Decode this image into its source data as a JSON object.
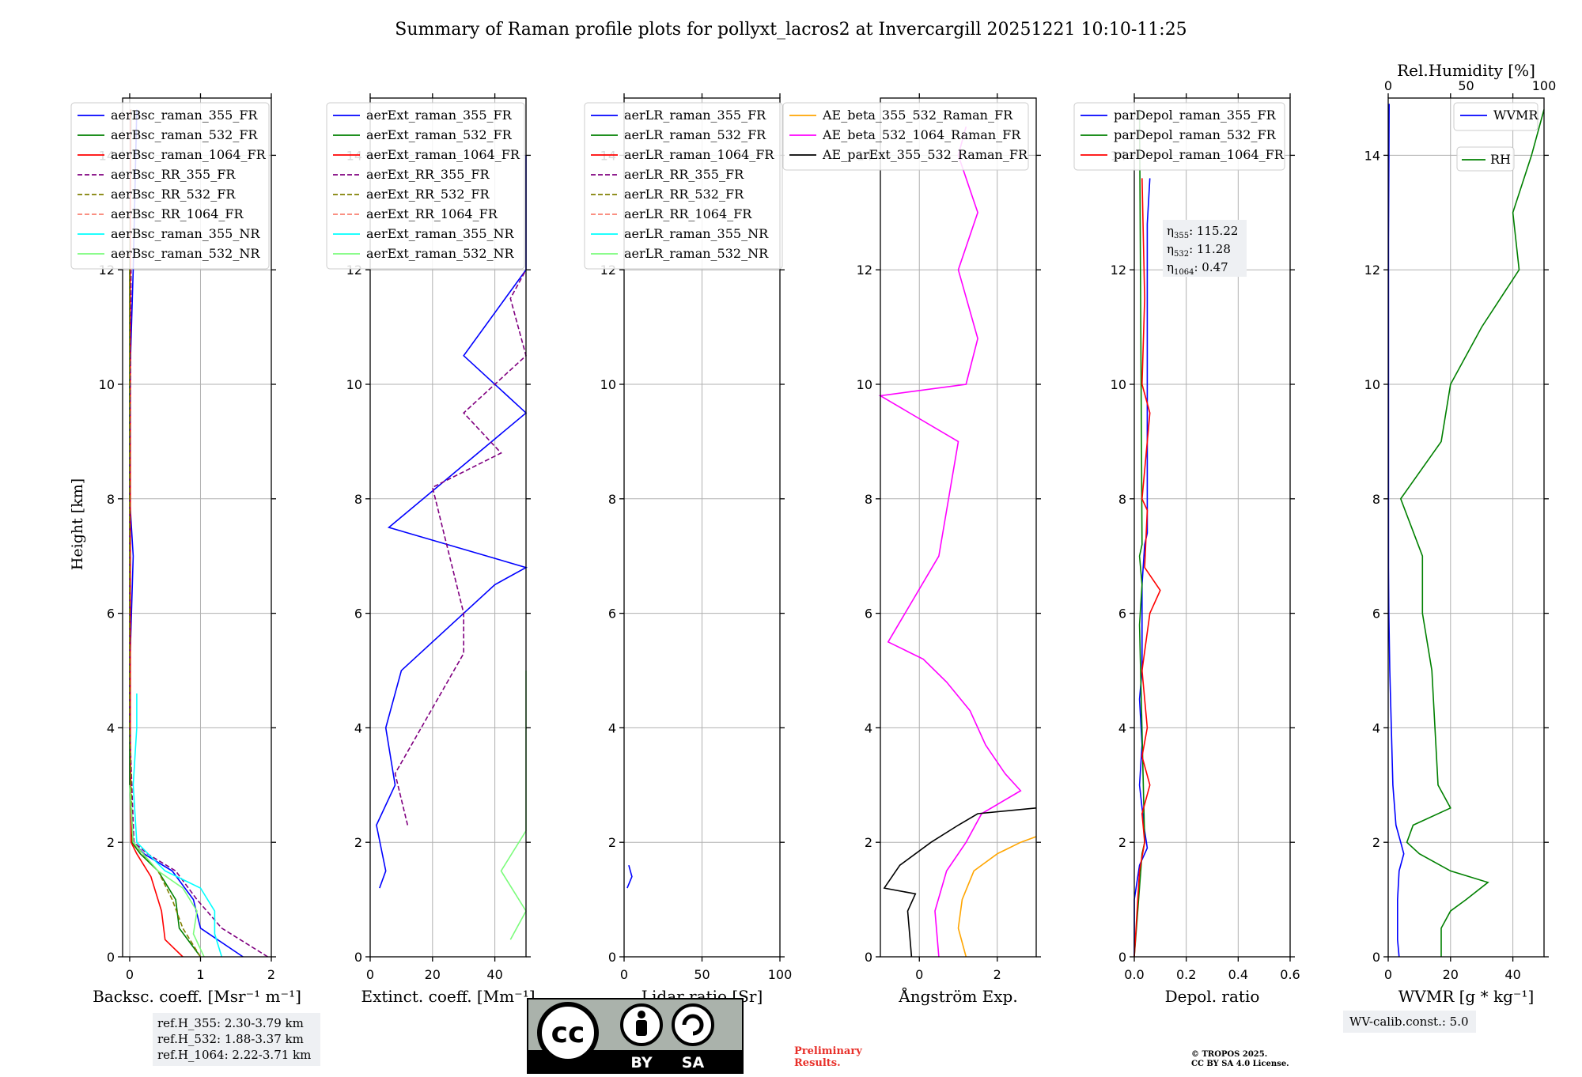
{
  "title": "Summary of Raman profile plots for pollyxt_lacros2 at Invercargill 20251221 10:10-11:25",
  "ylabel": "Height [km]",
  "colors": {
    "blue": "#0000ff",
    "green": "#008000",
    "red": "#ff0000",
    "purple": "#800080",
    "olive": "#808000",
    "salmon": "#fa8072",
    "cyan": "#00ffff",
    "lightgreen": "#7cfc7c",
    "orange": "#ffa500",
    "magenta": "#ff00ff",
    "black": "#000000"
  },
  "chart_data": [
    {
      "type": "line",
      "xlabel": "Backsc. coeff. [Msr⁻¹ m⁻¹]",
      "xlim": [
        -0.1,
        2
      ],
      "ylim": [
        0,
        15
      ],
      "xticks": [
        "0",
        "1",
        "2"
      ],
      "xtick_values": [
        0,
        1,
        2
      ],
      "legend": [
        "aerBsc_raman_355_FR",
        "aerBsc_raman_532_FR",
        "aerBsc_raman_1064_FR",
        "aerBsc_RR_355_FR",
        "aerBsc_RR_532_FR",
        "aerBsc_RR_1064_FR",
        "aerBsc_raman_355_NR",
        "aerBsc_raman_532_NR"
      ],
      "series": [
        {
          "name": "aerBsc_raman_355_FR",
          "color": "blue",
          "y": [
            0,
            0.5,
            1,
            1.5,
            1.8,
            2,
            3,
            5,
            7,
            8,
            10,
            12,
            14.8
          ],
          "x": [
            1.6,
            1.0,
            0.9,
            0.6,
            0.2,
            0.05,
            0.0,
            0.0,
            0.05,
            0.0,
            0.0,
            0.05,
            0.1
          ]
        },
        {
          "name": "aerBsc_raman_532_FR",
          "color": "green",
          "y": [
            0,
            0.5,
            1,
            1.5,
            1.8,
            2,
            3,
            5,
            8,
            12,
            14.8
          ],
          "x": [
            1.0,
            0.7,
            0.65,
            0.4,
            0.15,
            0.03,
            0.0,
            0.0,
            0.0,
            0.0,
            0.02
          ]
        },
        {
          "name": "aerBsc_raman_1064_FR",
          "color": "red",
          "y": [
            0,
            0.3,
            0.8,
            1.4,
            1.8,
            2,
            4,
            8,
            12,
            14.8
          ],
          "x": [
            0.75,
            0.5,
            0.45,
            0.3,
            0.1,
            0.02,
            0.01,
            0.01,
            0.01,
            0.01
          ]
        },
        {
          "name": "aerBsc_RR_355_FR",
          "color": "purple",
          "y": [
            0,
            0.5,
            1,
            1.5,
            1.8,
            2,
            4,
            8,
            12
          ],
          "x": [
            1.95,
            1.3,
            0.95,
            0.65,
            0.25,
            0.06,
            0.0,
            0.0,
            0.02
          ]
        },
        {
          "name": "aerBsc_RR_532_FR",
          "color": "olive",
          "y": [
            0,
            0.5,
            1,
            1.5,
            2,
            4,
            8,
            12
          ],
          "x": [
            1.0,
            0.75,
            0.6,
            0.4,
            0.04,
            0.0,
            0.0,
            0.0
          ]
        },
        {
          "name": "aerBsc_raman_355_NR",
          "color": "cyan",
          "y": [
            0,
            0.4,
            0.8,
            1.2,
            1.5,
            2,
            3,
            4,
            4.6
          ],
          "x": [
            1.3,
            1.2,
            1.2,
            1.0,
            0.5,
            0.1,
            0.05,
            0.1,
            0.1
          ]
        },
        {
          "name": "aerBsc_raman_532_NR",
          "color": "lightgreen",
          "y": [
            0,
            0.4,
            0.8,
            1.2,
            1.5,
            2,
            3
          ],
          "x": [
            1.05,
            0.9,
            0.95,
            0.75,
            0.4,
            0.05,
            0.0
          ]
        }
      ]
    },
    {
      "type": "line",
      "xlabel": "Extinct. coeff. [Mm⁻¹]",
      "xlim": [
        0,
        50
      ],
      "ylim": [
        0,
        15
      ],
      "xticks": [
        "0",
        "20",
        "40"
      ],
      "xtick_values": [
        0,
        20,
        40
      ],
      "legend": [
        "aerExt_raman_355_FR",
        "aerExt_raman_532_FR",
        "aerExt_raman_1064_FR",
        "aerExt_RR_355_FR",
        "aerExt_RR_532_FR",
        "aerExt_RR_1064_FR",
        "aerExt_raman_355_NR",
        "aerExt_raman_532_NR"
      ],
      "series": [
        {
          "name": "aerExt_raman_355_FR",
          "color": "blue",
          "y": [
            1.2,
            1.5,
            2.3,
            3,
            4,
            5,
            6.5,
            6.8,
            7.5,
            9.5,
            10.5,
            12,
            14
          ],
          "x": [
            3,
            5,
            2,
            8,
            5,
            10,
            40,
            50,
            6,
            50,
            30,
            50,
            50
          ]
        },
        {
          "name": "aerExt_RR_355_FR",
          "color": "purple",
          "y": [
            2.3,
            3.2,
            5.3,
            6,
            8.2,
            8.8,
            9.5,
            10.5,
            11.5,
            12
          ],
          "x": [
            12,
            8,
            30,
            30,
            20,
            42,
            30,
            50,
            45,
            50
          ]
        },
        {
          "name": "aerExt_raman_532_NR",
          "color": "lightgreen",
          "y": [
            0.3,
            0.8,
            1.5,
            2.2,
            3,
            4,
            5
          ],
          "x": [
            45,
            50,
            42,
            50,
            50,
            50,
            50
          ]
        }
      ]
    },
    {
      "type": "line",
      "xlabel": "Lidar ratio [Sr]",
      "xlim": [
        0,
        100
      ],
      "ylim": [
        0,
        15
      ],
      "xticks": [
        "0",
        "50",
        "100"
      ],
      "xtick_values": [
        0,
        50,
        100
      ],
      "legend": [
        "aerLR_raman_355_FR",
        "aerLR_raman_532_FR",
        "aerLR_raman_1064_FR",
        "aerLR_RR_355_FR",
        "aerLR_RR_532_FR",
        "aerLR_RR_1064_FR",
        "aerLR_raman_355_NR",
        "aerLR_raman_532_NR"
      ],
      "series": [
        {
          "name": "aerLR_raman_355_FR",
          "color": "blue",
          "y": [
            1.2,
            1.4,
            1.6
          ],
          "x": [
            2,
            5,
            3
          ]
        }
      ]
    },
    {
      "type": "line",
      "xlabel": "Ångström Exp.",
      "xlim": [
        -1,
        3
      ],
      "ylim": [
        0,
        15
      ],
      "xticks": [
        "0",
        "2"
      ],
      "xtick_values": [
        0,
        2
      ],
      "legend": [
        "AE_beta_355_532_Raman_FR",
        "AE_beta_532_1064_Raman_FR",
        "AE_parExt_355_532_Raman_FR"
      ],
      "series": [
        {
          "name": "AE_beta_355_532_Raman_FR",
          "color": "orange",
          "y": [
            0,
            0.5,
            1,
            1.5,
            1.8,
            2,
            2.1
          ],
          "x": [
            1.2,
            1.0,
            1.1,
            1.4,
            2.0,
            2.6,
            3.0
          ]
        },
        {
          "name": "AE_beta_532_1064_Raman_FR",
          "color": "magenta",
          "y": [
            0,
            0.8,
            1.5,
            2,
            2.5,
            2.9,
            3.2,
            3.7,
            4.3,
            4.8,
            5.2,
            5.5,
            7,
            9,
            9.8,
            10,
            10.8,
            12,
            13,
            14,
            14.5
          ],
          "x": [
            0.5,
            0.4,
            0.7,
            1.2,
            1.6,
            2.6,
            2.2,
            1.7,
            1.3,
            0.7,
            0.1,
            -0.8,
            0.5,
            1.0,
            -1.0,
            1.2,
            1.5,
            1.0,
            1.5,
            1.0,
            1.2
          ]
        },
        {
          "name": "AE_parExt_355_532_Raman_FR",
          "color": "black",
          "y": [
            0,
            0.8,
            1.1,
            1.2,
            1.6,
            2.0,
            2.3,
            2.5,
            2.6
          ],
          "x": [
            -0.2,
            -0.3,
            -0.1,
            -0.9,
            -0.5,
            0.3,
            1.0,
            1.5,
            3.0
          ]
        }
      ]
    },
    {
      "type": "line",
      "xlabel": "Depol. ratio",
      "xlim": [
        0.0,
        0.6
      ],
      "ylim": [
        0,
        15
      ],
      "xticks": [
        "0.0",
        "0.2",
        "0.4",
        "0.6"
      ],
      "xtick_values": [
        0,
        0.2,
        0.4,
        0.6
      ],
      "legend": [
        "parDepol_raman_355_FR",
        "parDepol_raman_532_FR",
        "parDepol_raman_1064_FR"
      ],
      "annotation": [
        {
          "sym": "η",
          "sub": "355",
          "val": ": 115.22"
        },
        {
          "sym": "η",
          "sub": "532",
          "val": ": 11.28"
        },
        {
          "sym": "η",
          "sub": "1064",
          "val": ": 0.47"
        }
      ],
      "series": [
        {
          "name": "parDepol_raman_355_FR",
          "color": "blue",
          "y": [
            0,
            1,
            1.6,
            1.9,
            2.2,
            3,
            3.7,
            4.5,
            5,
            6,
            6.5,
            7.2,
            7.4,
            10.2,
            11.3,
            12.8,
            13.6
          ],
          "x": [
            0.0,
            0.0,
            0.02,
            0.05,
            0.04,
            0.02,
            0.03,
            0.02,
            0.03,
            0.03,
            0.03,
            0.04,
            0.05,
            0.05,
            0.05,
            0.05,
            0.06
          ]
        },
        {
          "name": "parDepol_raman_532_FR",
          "color": "green",
          "y": [
            0,
            1.8,
            2,
            5.8,
            6.5,
            7,
            7.2,
            14.8
          ],
          "x": [
            0.0,
            0.03,
            0.04,
            0.02,
            0.03,
            0.02,
            0.03,
            0.02
          ]
        },
        {
          "name": "parDepol_raman_1064_FR",
          "color": "red",
          "y": [
            0,
            1.5,
            2,
            2.5,
            3,
            3.5,
            4,
            4.5,
            5,
            6,
            6.4,
            6.8,
            7.8,
            8,
            9.5,
            10,
            11.5,
            13.6
          ],
          "x": [
            0.0,
            0.02,
            0.04,
            0.03,
            0.06,
            0.03,
            0.05,
            0.04,
            0.03,
            0.06,
            0.1,
            0.04,
            0.05,
            0.03,
            0.06,
            0.03,
            0.04,
            0.03
          ]
        }
      ]
    },
    {
      "type": "line",
      "xlabel": "WVMR [g * kg⁻¹]",
      "xlabel2": "Rel.Humidity [%]",
      "xlim": [
        0,
        50
      ],
      "ylim": [
        0,
        15
      ],
      "xticks": [
        "0",
        "20",
        "40"
      ],
      "xtick_values": [
        0,
        20,
        40
      ],
      "x2ticks": [
        "0",
        "50",
        "100"
      ],
      "x2tick_values": [
        0,
        50,
        100
      ],
      "legend": [
        "WVMR"
      ],
      "legend2": [
        "RH"
      ],
      "series": [
        {
          "name": "WVMR",
          "color": "blue",
          "y": [
            0,
            0.3,
            1,
            1.5,
            1.8,
            2,
            2.3,
            3,
            5,
            6,
            6.8,
            10,
            12.5,
            14.9
          ],
          "x": [
            3.5,
            3,
            3,
            3.5,
            5,
            4,
            2.5,
            1.5,
            0.5,
            0.2,
            0.1,
            0.1,
            0.1,
            0.3
          ]
        },
        {
          "name": "RH",
          "color": "green",
          "y": [
            0,
            0.5,
            0.8,
            1,
            1.3,
            1.5,
            1.8,
            2,
            2.3,
            2.6,
            3,
            4,
            5,
            6,
            7,
            8,
            9,
            10,
            11,
            12,
            13,
            14,
            14.8
          ],
          "x": [
            17,
            17,
            20,
            25,
            32,
            20,
            10,
            6,
            8,
            20,
            16,
            15,
            14,
            11,
            11,
            4,
            17,
            20,
            30,
            42,
            40,
            46,
            50
          ]
        }
      ]
    }
  ],
  "ytick_labels": [
    "0",
    "2",
    "4",
    "6",
    "8",
    "10",
    "12",
    "14"
  ],
  "ref_box": [
    "ref.H_355: 2.30-3.79 km",
    "ref.H_532: 1.88-3.37 km",
    "ref.H_1064: 2.22-3.71 km"
  ],
  "wv_calib": "WV-calib.const.: 5.0",
  "preliminary": [
    "Preliminary",
    "Results."
  ],
  "tropos": [
    "© TROPOS 2025.",
    "CC BY SA 4.0 License."
  ],
  "cc_badge": {
    "top": "cc",
    "by": "BY",
    "sa": "SA"
  }
}
